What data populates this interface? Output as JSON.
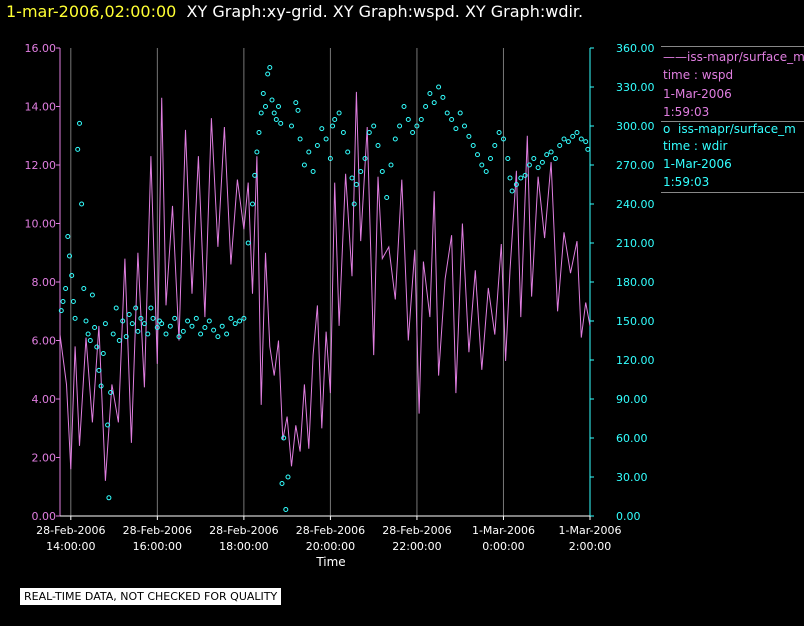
{
  "header": {
    "timestamp": "1-mar-2006,02:00:00",
    "graphs": "XY Graph:xy-grid.  XY Graph:wspd.  XY Graph:wdir."
  },
  "legend": [
    {
      "marker": "——",
      "name": "iss-mapr/surface_m",
      "var": "time : wspd",
      "date": "1-Mar-2006",
      "time": "1:59:03",
      "color": "#e07ee0"
    },
    {
      "marker": "o",
      "name": "iss-mapr/surface_m",
      "var": "time : wdir",
      "date": "1-Mar-2006",
      "time": "1:59:03",
      "color": "#33ffff"
    }
  ],
  "notice": "REAL-TIME DATA, NOT CHECKED FOR QUALITY",
  "chart_data": {
    "type": "line",
    "xlabel": "Time",
    "x_ticks": [
      {
        "h": 14,
        "d": "28-Feb-2006",
        "t": "14:00:00"
      },
      {
        "h": 16,
        "d": "28-Feb-2006",
        "t": "16:00:00"
      },
      {
        "h": 18,
        "d": "28-Feb-2006",
        "t": "18:00:00"
      },
      {
        "h": 20,
        "d": "28-Feb-2006",
        "t": "20:00:00"
      },
      {
        "h": 22,
        "d": "28-Feb-2006",
        "t": "22:00:00"
      },
      {
        "h": 24,
        "d": "1-Mar-2006",
        "t": "0:00:00"
      },
      {
        "h": 26,
        "d": "1-Mar-2006",
        "t": "2:00:00"
      }
    ],
    "xlim": [
      13.75,
      26
    ],
    "y_left": {
      "lim": [
        0,
        16
      ],
      "ticks": [
        "0.00",
        "2.00",
        "4.00",
        "6.00",
        "8.00",
        "10.00",
        "12.00",
        "14.00",
        "16.00"
      ],
      "color": "#e07ee0"
    },
    "y_right": {
      "lim": [
        0,
        360
      ],
      "ticks": [
        "0.00",
        "30.00",
        "60.00",
        "90.00",
        "120.00",
        "150.00",
        "180.00",
        "210.00",
        "240.00",
        "270.00",
        "300.00",
        "330.00",
        "360.00"
      ],
      "color": "#33ffff"
    },
    "grid": "vertical",
    "series": [
      {
        "name": "wspd",
        "axis": "left",
        "style": "line",
        "color": "#e07ee0",
        "points": [
          [
            13.75,
            6.2
          ],
          [
            13.9,
            4.5
          ],
          [
            14.0,
            1.6
          ],
          [
            14.1,
            5.8
          ],
          [
            14.2,
            2.4
          ],
          [
            14.35,
            6.1
          ],
          [
            14.5,
            3.2
          ],
          [
            14.65,
            6.5
          ],
          [
            14.8,
            1.2
          ],
          [
            14.95,
            4.5
          ],
          [
            15.1,
            3.2
          ],
          [
            15.25,
            8.8
          ],
          [
            15.4,
            2.5
          ],
          [
            15.55,
            9.0
          ],
          [
            15.7,
            4.4
          ],
          [
            15.85,
            12.3
          ],
          [
            16.0,
            5.2
          ],
          [
            16.1,
            14.3
          ],
          [
            16.2,
            7.2
          ],
          [
            16.35,
            10.6
          ],
          [
            16.5,
            6.0
          ],
          [
            16.65,
            13.2
          ],
          [
            16.8,
            7.6
          ],
          [
            16.95,
            12.3
          ],
          [
            17.1,
            6.8
          ],
          [
            17.25,
            13.6
          ],
          [
            17.4,
            9.2
          ],
          [
            17.55,
            13.3
          ],
          [
            17.7,
            8.6
          ],
          [
            17.85,
            11.5
          ],
          [
            18.0,
            9.8
          ],
          [
            18.1,
            11.4
          ],
          [
            18.2,
            7.6
          ],
          [
            18.3,
            12.3
          ],
          [
            18.4,
            3.8
          ],
          [
            18.5,
            9.0
          ],
          [
            18.6,
            5.8
          ],
          [
            18.7,
            4.8
          ],
          [
            18.8,
            6.0
          ],
          [
            18.9,
            2.6
          ],
          [
            19.0,
            3.4
          ],
          [
            19.1,
            1.7
          ],
          [
            19.2,
            3.1
          ],
          [
            19.3,
            2.2
          ],
          [
            19.4,
            4.5
          ],
          [
            19.5,
            2.3
          ],
          [
            19.6,
            5.5
          ],
          [
            19.7,
            7.2
          ],
          [
            19.8,
            3.0
          ],
          [
            19.9,
            6.3
          ],
          [
            20.0,
            4.2
          ],
          [
            20.1,
            11.4
          ],
          [
            20.2,
            6.5
          ],
          [
            20.35,
            11.7
          ],
          [
            20.5,
            8.2
          ],
          [
            20.6,
            14.5
          ],
          [
            20.7,
            9.4
          ],
          [
            20.85,
            13.3
          ],
          [
            21.0,
            5.5
          ],
          [
            21.1,
            11.6
          ],
          [
            21.2,
            8.8
          ],
          [
            21.35,
            9.2
          ],
          [
            21.5,
            7.4
          ],
          [
            21.65,
            11.5
          ],
          [
            21.8,
            6.0
          ],
          [
            21.95,
            9.1
          ],
          [
            22.05,
            3.5
          ],
          [
            22.15,
            8.7
          ],
          [
            22.3,
            6.8
          ],
          [
            22.4,
            11.1
          ],
          [
            22.5,
            4.8
          ],
          [
            22.65,
            8.1
          ],
          [
            22.8,
            9.6
          ],
          [
            22.9,
            4.2
          ],
          [
            23.05,
            10.0
          ],
          [
            23.2,
            5.6
          ],
          [
            23.35,
            8.4
          ],
          [
            23.5,
            5.0
          ],
          [
            23.65,
            7.8
          ],
          [
            23.8,
            6.2
          ],
          [
            23.95,
            9.3
          ],
          [
            24.05,
            5.3
          ],
          [
            24.15,
            8.4
          ],
          [
            24.3,
            11.8
          ],
          [
            24.4,
            6.8
          ],
          [
            24.55,
            13.0
          ],
          [
            24.65,
            7.5
          ],
          [
            24.8,
            11.6
          ],
          [
            24.95,
            9.5
          ],
          [
            25.1,
            12.1
          ],
          [
            25.25,
            7.0
          ],
          [
            25.4,
            9.7
          ],
          [
            25.55,
            8.3
          ],
          [
            25.7,
            9.4
          ],
          [
            25.8,
            6.1
          ],
          [
            25.9,
            7.3
          ],
          [
            26.0,
            6.5
          ]
        ]
      },
      {
        "name": "wdir",
        "axis": "right",
        "style": "scatter",
        "color": "#33ffff",
        "points": [
          [
            13.78,
            158
          ],
          [
            13.82,
            165
          ],
          [
            13.88,
            175
          ],
          [
            13.93,
            215
          ],
          [
            13.97,
            200
          ],
          [
            14.02,
            185
          ],
          [
            14.06,
            165
          ],
          [
            14.1,
            152
          ],
          [
            14.16,
            282
          ],
          [
            14.2,
            302
          ],
          [
            14.25,
            240
          ],
          [
            14.3,
            175
          ],
          [
            14.35,
            150
          ],
          [
            14.4,
            140
          ],
          [
            14.45,
            135
          ],
          [
            14.5,
            170
          ],
          [
            14.55,
            145
          ],
          [
            14.6,
            130
          ],
          [
            14.65,
            112
          ],
          [
            14.7,
            100
          ],
          [
            14.75,
            125
          ],
          [
            14.8,
            148
          ],
          [
            14.85,
            70
          ],
          [
            14.88,
            14
          ],
          [
            14.92,
            95
          ],
          [
            14.98,
            140
          ],
          [
            15.05,
            160
          ],
          [
            15.12,
            135
          ],
          [
            15.2,
            150
          ],
          [
            15.28,
            138
          ],
          [
            15.35,
            155
          ],
          [
            15.42,
            148
          ],
          [
            15.5,
            160
          ],
          [
            15.55,
            142
          ],
          [
            15.62,
            152
          ],
          [
            15.7,
            148
          ],
          [
            15.78,
            140
          ],
          [
            15.85,
            160
          ],
          [
            15.9,
            152
          ],
          [
            16.0,
            145
          ],
          [
            16.05,
            150
          ],
          [
            16.1,
            148
          ],
          [
            16.2,
            140
          ],
          [
            16.3,
            146
          ],
          [
            16.4,
            152
          ],
          [
            16.5,
            138
          ],
          [
            16.6,
            142
          ],
          [
            16.7,
            150
          ],
          [
            16.8,
            146
          ],
          [
            16.9,
            152
          ],
          [
            17.0,
            140
          ],
          [
            17.1,
            145
          ],
          [
            17.2,
            150
          ],
          [
            17.3,
            143
          ],
          [
            17.4,
            138
          ],
          [
            17.5,
            146
          ],
          [
            17.6,
            140
          ],
          [
            17.7,
            152
          ],
          [
            17.8,
            148
          ],
          [
            17.9,
            150
          ],
          [
            18.0,
            152
          ],
          [
            18.1,
            210
          ],
          [
            18.2,
            240
          ],
          [
            18.25,
            262
          ],
          [
            18.3,
            280
          ],
          [
            18.35,
            295
          ],
          [
            18.4,
            310
          ],
          [
            18.45,
            325
          ],
          [
            18.5,
            315
          ],
          [
            18.55,
            340
          ],
          [
            18.6,
            345
          ],
          [
            18.65,
            320
          ],
          [
            18.7,
            310
          ],
          [
            18.75,
            305
          ],
          [
            18.8,
            315
          ],
          [
            18.85,
            302
          ],
          [
            18.88,
            25
          ],
          [
            18.92,
            60
          ],
          [
            18.97,
            5
          ],
          [
            19.02,
            30
          ],
          [
            19.1,
            300
          ],
          [
            19.2,
            318
          ],
          [
            19.25,
            312
          ],
          [
            19.3,
            290
          ],
          [
            19.4,
            270
          ],
          [
            19.5,
            280
          ],
          [
            19.6,
            265
          ],
          [
            19.7,
            285
          ],
          [
            19.8,
            298
          ],
          [
            19.9,
            290
          ],
          [
            20.0,
            275
          ],
          [
            20.05,
            300
          ],
          [
            20.1,
            305
          ],
          [
            20.2,
            310
          ],
          [
            20.3,
            295
          ],
          [
            20.4,
            280
          ],
          [
            20.5,
            260
          ],
          [
            20.55,
            240
          ],
          [
            20.6,
            255
          ],
          [
            20.7,
            265
          ],
          [
            20.8,
            275
          ],
          [
            20.9,
            295
          ],
          [
            21.0,
            300
          ],
          [
            21.1,
            285
          ],
          [
            21.2,
            265
          ],
          [
            21.3,
            245
          ],
          [
            21.4,
            270
          ],
          [
            21.5,
            290
          ],
          [
            21.6,
            300
          ],
          [
            21.7,
            315
          ],
          [
            21.8,
            305
          ],
          [
            21.9,
            295
          ],
          [
            22.0,
            300
          ],
          [
            22.1,
            305
          ],
          [
            22.2,
            315
          ],
          [
            22.3,
            325
          ],
          [
            22.4,
            318
          ],
          [
            22.5,
            330
          ],
          [
            22.6,
            322
          ],
          [
            22.7,
            310
          ],
          [
            22.8,
            305
          ],
          [
            22.9,
            298
          ],
          [
            23.0,
            310
          ],
          [
            23.1,
            300
          ],
          [
            23.2,
            292
          ],
          [
            23.3,
            285
          ],
          [
            23.4,
            278
          ],
          [
            23.5,
            270
          ],
          [
            23.6,
            265
          ],
          [
            23.7,
            275
          ],
          [
            23.8,
            285
          ],
          [
            23.9,
            295
          ],
          [
            24.0,
            290
          ],
          [
            24.1,
            275
          ],
          [
            24.15,
            260
          ],
          [
            24.2,
            250
          ],
          [
            24.3,
            255
          ],
          [
            24.4,
            260
          ],
          [
            24.5,
            262
          ],
          [
            24.6,
            270
          ],
          [
            24.7,
            275
          ],
          [
            24.8,
            268
          ],
          [
            24.9,
            272
          ],
          [
            25.0,
            278
          ],
          [
            25.1,
            280
          ],
          [
            25.2,
            275
          ],
          [
            25.3,
            285
          ],
          [
            25.4,
            290
          ],
          [
            25.5,
            288
          ],
          [
            25.6,
            292
          ],
          [
            25.7,
            295
          ],
          [
            25.8,
            290
          ],
          [
            25.9,
            288
          ],
          [
            25.95,
            282
          ]
        ]
      }
    ]
  }
}
